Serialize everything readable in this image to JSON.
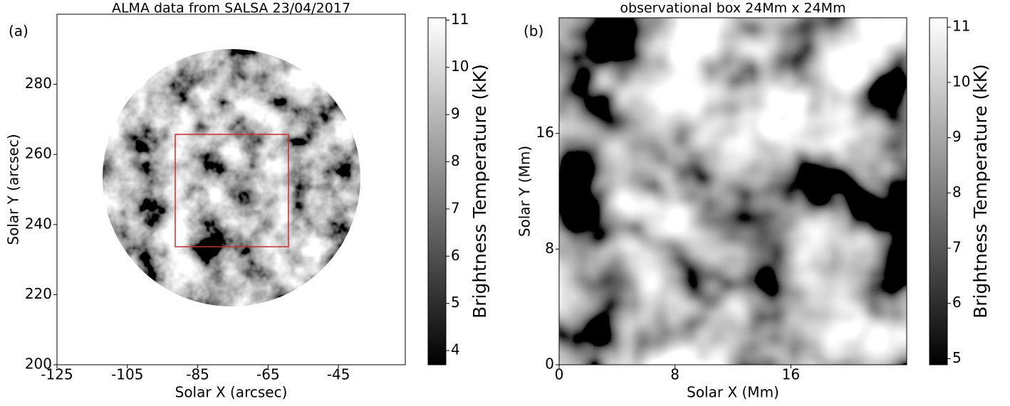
{
  "chart_data": [
    {
      "type": "image",
      "panel_label": "(a)",
      "title": "ALMA data from SALSA 23/04/2017",
      "x_label": "Solar X (arcsec)",
      "y_label": "Solar Y (arcsec)",
      "xlim": [
        -125,
        -26
      ],
      "ylim": [
        200,
        300
      ],
      "xticks": [
        -125,
        -105,
        -85,
        -65,
        -45
      ],
      "yticks": [
        200,
        220,
        240,
        260,
        280
      ],
      "colorbar_label": "Brightness Temperature (kK)",
      "clim": [
        3.7,
        11.05
      ],
      "cticks": [
        4,
        5,
        6,
        7,
        8,
        9,
        10,
        11
      ],
      "colormap": "gray"
    },
    {
      "type": "image",
      "panel_label": "(b)",
      "title": "observational box 24Mm x 24Mm",
      "x_label": "Solar X (Mm)",
      "y_label": "Solar Y (Mm)",
      "xlim": [
        0,
        24
      ],
      "ylim": [
        0,
        24
      ],
      "xticks": [
        0,
        8,
        16
      ],
      "yticks": [
        0,
        8,
        16
      ],
      "colorbar_label": "Brightness Temperature (kK)",
      "clim": [
        4.89,
        11.17
      ],
      "cticks": [
        5,
        6,
        7,
        8,
        9,
        10,
        11
      ],
      "colormap": "gray"
    }
  ]
}
